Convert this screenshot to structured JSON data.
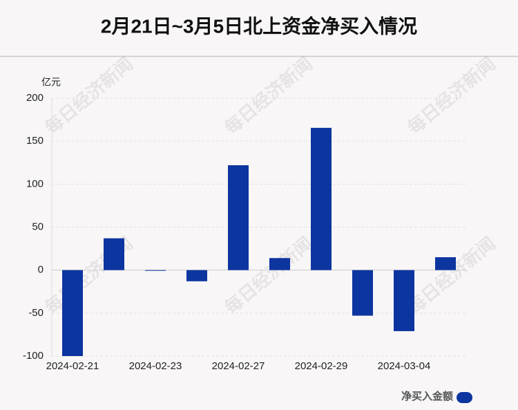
{
  "chart_data": {
    "type": "bar",
    "title": "2月21日~3月5日北上资金净买入情况",
    "y_label": "亿元",
    "watermark": "每日经济新闻",
    "categories": [
      "2024-02-21",
      null,
      "2024-02-23",
      null,
      "2024-02-27",
      null,
      "2024-02-29",
      null,
      "2024-03-04",
      null
    ],
    "series": [
      {
        "name": "净买入金额",
        "color": "#0d35a0",
        "values": [
          -100,
          37,
          -0.5,
          -13,
          122,
          14,
          165.5,
          -53,
          -71,
          15
        ]
      }
    ],
    "ylim": [
      -100,
      200
    ],
    "yticks": [
      -100,
      -50,
      0,
      50,
      100,
      150,
      200
    ],
    "grid": true,
    "legend": "bottom-right"
  }
}
